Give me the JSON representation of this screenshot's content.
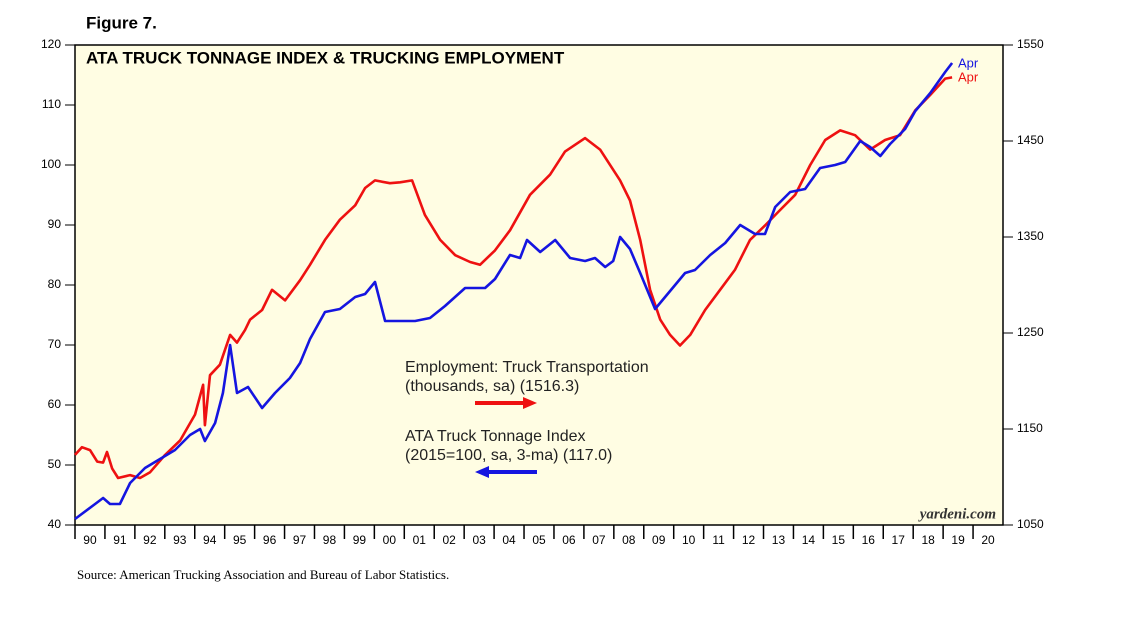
{
  "chart_data": {
    "type": "line",
    "figure_label": "Figure 7.",
    "title": "ATA TRUCK TONNAGE INDEX & TRUCKING EMPLOYMENT",
    "watermark": "yardeni.com",
    "source": "Source: American Trucking Association and Bureau of Labor Statistics.",
    "xlim": [
      1990,
      2021
    ],
    "x_categories": [
      "90",
      "91",
      "92",
      "93",
      "94",
      "95",
      "96",
      "97",
      "98",
      "99",
      "00",
      "01",
      "02",
      "03",
      "04",
      "05",
      "06",
      "07",
      "08",
      "09",
      "10",
      "11",
      "12",
      "13",
      "14",
      "15",
      "16",
      "17",
      "18",
      "19",
      "20"
    ],
    "ylim": [
      40,
      120
    ],
    "yticks": [
      40,
      50,
      60,
      70,
      80,
      90,
      100,
      110,
      120
    ],
    "y2lim": [
      1050,
      1550
    ],
    "y2ticks": [
      1050,
      1150,
      1250,
      1350,
      1450,
      1550
    ],
    "background": "#fffde3",
    "series": [
      {
        "name": "Employment: Truck Transportation",
        "note": "(thousands, sa) (1516.3)",
        "end_label": "Apr",
        "color": "#ee1111",
        "axis": "y2",
        "legend_arrow": "right",
        "x": [
          1990.0,
          1990.23,
          1990.5,
          1990.74,
          1990.94,
          1991.07,
          1991.24,
          1991.44,
          1991.84,
          1992.17,
          1992.51,
          1993.01,
          1993.51,
          1994.01,
          1994.28,
          1994.34,
          1994.51,
          1994.84,
          1995.18,
          1995.41,
          1995.68,
          1995.85,
          1996.25,
          1996.58,
          1997.02,
          1997.52,
          1997.85,
          1998.35,
          1998.85,
          1999.36,
          1999.69,
          2000.02,
          2000.52,
          2000.86,
          2001.26,
          2001.69,
          2002.2,
          2002.7,
          2003.2,
          2003.53,
          2004.03,
          2004.53,
          2005.2,
          2005.87,
          2006.37,
          2007.04,
          2007.54,
          2008.21,
          2008.54,
          2008.88,
          2009.21,
          2009.55,
          2009.88,
          2010.21,
          2010.55,
          2011.05,
          2011.55,
          2012.05,
          2012.55,
          2013.05,
          2013.55,
          2014.06,
          2014.56,
          2015.06,
          2015.56,
          2016.06,
          2016.56,
          2017.06,
          2017.56,
          2018.07,
          2018.57,
          2019.07,
          2019.3
        ],
        "values": [
          1123,
          1131,
          1128,
          1116,
          1115,
          1126,
          1109,
          1099,
          1102,
          1099,
          1105,
          1123,
          1138,
          1165,
          1196,
          1154,
          1206,
          1217,
          1248,
          1240,
          1253,
          1264,
          1274,
          1295,
          1284,
          1305,
          1321,
          1347,
          1368,
          1383,
          1401,
          1409,
          1406,
          1407,
          1409,
          1373,
          1347,
          1331,
          1324,
          1321,
          1336,
          1357,
          1394,
          1415,
          1439,
          1453,
          1441,
          1409,
          1388,
          1347,
          1295,
          1264,
          1248,
          1237,
          1248,
          1274,
          1295,
          1316,
          1347,
          1362,
          1378,
          1394,
          1425,
          1451,
          1461,
          1456,
          1441,
          1451,
          1456,
          1482,
          1498,
          1515,
          1516.3
        ]
      },
      {
        "name": "ATA Truck Tonnage Index",
        "note": "(2015=100, sa, 3-ma) (117.0)",
        "end_label": "Apr",
        "color": "#1515e0",
        "axis": "y",
        "legend_arrow": "left",
        "x": [
          1990.0,
          1990.67,
          1990.94,
          1991.17,
          1991.5,
          1991.84,
          1992.34,
          1992.84,
          1993.34,
          1993.84,
          1994.18,
          1994.34,
          1994.68,
          1994.94,
          1995.18,
          1995.41,
          1995.78,
          1996.25,
          1996.68,
          1997.18,
          1997.52,
          1997.85,
          1998.35,
          1998.85,
          1999.36,
          1999.69,
          2000.02,
          2000.36,
          2000.86,
          2001.36,
          2001.86,
          2002.36,
          2003.03,
          2003.7,
          2004.03,
          2004.53,
          2004.87,
          2005.1,
          2005.54,
          2006.04,
          2006.54,
          2007.04,
          2007.37,
          2007.71,
          2007.98,
          2008.21,
          2008.54,
          2008.88,
          2009.38,
          2009.88,
          2010.38,
          2010.71,
          2011.22,
          2011.72,
          2012.22,
          2012.72,
          2013.05,
          2013.39,
          2013.89,
          2014.39,
          2014.89,
          2015.39,
          2015.73,
          2016.23,
          2016.56,
          2016.9,
          2017.23,
          2017.73,
          2018.07,
          2018.57,
          2019.07,
          2019.3
        ],
        "values": [
          41,
          43.5,
          44.5,
          43.5,
          43.5,
          47,
          49.5,
          51,
          52.5,
          55,
          56,
          54,
          57,
          62,
          70,
          62,
          63,
          59.5,
          62,
          64.5,
          67,
          71,
          75.5,
          76,
          78,
          78.5,
          80.5,
          74,
          74,
          74,
          74.5,
          76.5,
          79.5,
          79.5,
          81,
          85,
          84.5,
          87.5,
          85.5,
          87.5,
          84.5,
          84,
          84.5,
          83,
          84,
          88,
          86,
          82,
          76,
          79,
          82,
          82.5,
          85,
          87,
          90,
          88.5,
          88.5,
          93,
          95.5,
          96,
          99.5,
          100,
          100.5,
          104,
          103,
          101.5,
          103.5,
          106,
          109,
          112,
          115.5,
          117
        ]
      }
    ]
  }
}
